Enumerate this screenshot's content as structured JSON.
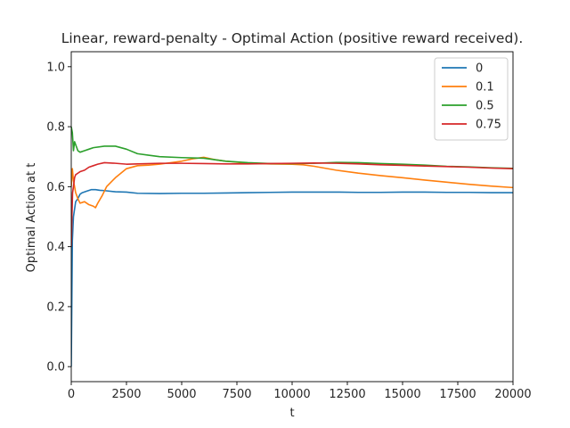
{
  "chart_data": {
    "type": "line",
    "title": "Linear, reward-penalty - Optimal Action (positive reward received).",
    "xlabel": "t",
    "ylabel": "Optimal Action at t",
    "xlim": [
      0,
      20000
    ],
    "ylim": [
      -0.05,
      1.05
    ],
    "xticks": [
      0,
      2500,
      5000,
      7500,
      10000,
      12500,
      15000,
      17500,
      20000
    ],
    "xtick_labels": [
      "0",
      "2500",
      "5000",
      "7500",
      "10000",
      "12500",
      "15000",
      "17500",
      "20000"
    ],
    "yticks": [
      0.0,
      0.2,
      0.4,
      0.6,
      0.8,
      1.0
    ],
    "ytick_labels": [
      "0.0",
      "0.2",
      "0.4",
      "0.6",
      "0.8",
      "1.0"
    ],
    "grid": false,
    "legend": "top-right",
    "series": [
      {
        "name": "0",
        "color": "#1f77b4",
        "x": [
          0,
          50,
          100,
          200,
          300,
          400,
          500,
          700,
          900,
          1100,
          1300,
          1500,
          2000,
          2500,
          3000,
          4000,
          5000,
          6000,
          7000,
          8000,
          9000,
          10000,
          11000,
          12000,
          13000,
          14000,
          15000,
          16000,
          17000,
          18000,
          19000,
          20000
        ],
        "y": [
          0.0,
          0.42,
          0.5,
          0.55,
          0.56,
          0.575,
          0.58,
          0.585,
          0.59,
          0.59,
          0.588,
          0.587,
          0.583,
          0.582,
          0.578,
          0.577,
          0.578,
          0.578,
          0.579,
          0.58,
          0.581,
          0.582,
          0.582,
          0.582,
          0.581,
          0.581,
          0.582,
          0.582,
          0.581,
          0.581,
          0.58,
          0.58
        ]
      },
      {
        "name": "0.1",
        "color": "#ff7f0e",
        "x": [
          0,
          50,
          100,
          200,
          300,
          400,
          600,
          800,
          1000,
          1100,
          1200,
          1400,
          1600,
          2000,
          2500,
          3000,
          3500,
          4000,
          5000,
          5500,
          6000,
          6500,
          7000,
          8000,
          9000,
          10000,
          10500,
          11000,
          12000,
          13000,
          14000,
          15000,
          16000,
          17000,
          18000,
          19000,
          20000
        ],
        "y": [
          0.6,
          0.66,
          0.62,
          0.58,
          0.56,
          0.545,
          0.55,
          0.54,
          0.535,
          0.53,
          0.545,
          0.57,
          0.6,
          0.63,
          0.66,
          0.67,
          0.672,
          0.675,
          0.685,
          0.693,
          0.698,
          0.69,
          0.685,
          0.678,
          0.676,
          0.675,
          0.673,
          0.668,
          0.655,
          0.645,
          0.637,
          0.63,
          0.622,
          0.615,
          0.608,
          0.602,
          0.597
        ]
      },
      {
        "name": "0.5",
        "color": "#2ca02c",
        "x": [
          0,
          50,
          100,
          150,
          200,
          300,
          400,
          600,
          800,
          1000,
          1500,
          2000,
          2500,
          3000,
          3500,
          4000,
          5000,
          6000,
          7000,
          8000,
          9000,
          10000,
          11000,
          12000,
          13000,
          14000,
          15000,
          16000,
          17000,
          18000,
          19000,
          20000
        ],
        "y": [
          0.8,
          0.78,
          0.72,
          0.75,
          0.74,
          0.72,
          0.715,
          0.72,
          0.725,
          0.73,
          0.735,
          0.735,
          0.725,
          0.71,
          0.705,
          0.7,
          0.697,
          0.695,
          0.685,
          0.68,
          0.677,
          0.677,
          0.678,
          0.681,
          0.68,
          0.677,
          0.675,
          0.672,
          0.668,
          0.666,
          0.663,
          0.661
        ]
      },
      {
        "name": "0.75",
        "color": "#d62728",
        "x": [
          0,
          30,
          60,
          100,
          150,
          200,
          300,
          400,
          600,
          800,
          1000,
          1200,
          1500,
          2000,
          2500,
          3000,
          4000,
          5000,
          6000,
          7000,
          8000,
          9000,
          10000,
          11000,
          12000,
          13000,
          14000,
          15000,
          16000,
          17000,
          18000,
          19000,
          20000
        ],
        "y": [
          0.4,
          0.5,
          0.58,
          0.6,
          0.63,
          0.64,
          0.645,
          0.65,
          0.655,
          0.665,
          0.67,
          0.675,
          0.68,
          0.678,
          0.675,
          0.676,
          0.678,
          0.678,
          0.677,
          0.676,
          0.676,
          0.677,
          0.678,
          0.679,
          0.678,
          0.676,
          0.673,
          0.671,
          0.669,
          0.667,
          0.665,
          0.662,
          0.66
        ]
      }
    ]
  }
}
